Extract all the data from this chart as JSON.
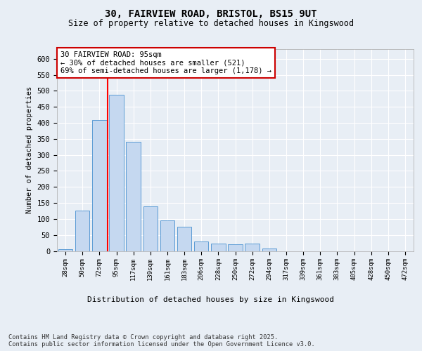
{
  "title1": "30, FAIRVIEW ROAD, BRISTOL, BS15 9UT",
  "title2": "Size of property relative to detached houses in Kingswood",
  "xlabel": "Distribution of detached houses by size in Kingswood",
  "ylabel": "Number of detached properties",
  "categories": [
    "28sqm",
    "50sqm",
    "72sqm",
    "95sqm",
    "117sqm",
    "139sqm",
    "161sqm",
    "183sqm",
    "206sqm",
    "228sqm",
    "250sqm",
    "272sqm",
    "294sqm",
    "317sqm",
    "339sqm",
    "361sqm",
    "383sqm",
    "405sqm",
    "428sqm",
    "450sqm",
    "472sqm"
  ],
  "bar_heights": [
    5,
    125,
    408,
    487,
    340,
    140,
    95,
    75,
    30,
    22,
    20,
    22,
    7,
    0,
    0,
    0,
    0,
    0,
    0,
    0,
    0
  ],
  "bar_color": "#c5d8f0",
  "bar_edge_color": "#5b9bd5",
  "red_line_index": 3,
  "annotation_text": "30 FAIRVIEW ROAD: 95sqm\n← 30% of detached houses are smaller (521)\n69% of semi-detached houses are larger (1,178) →",
  "annotation_box_color": "#ffffff",
  "annotation_box_edge": "#cc0000",
  "ylim": [
    0,
    630
  ],
  "yticks": [
    0,
    50,
    100,
    150,
    200,
    250,
    300,
    350,
    400,
    450,
    500,
    550,
    600
  ],
  "footer": "Contains HM Land Registry data © Crown copyright and database right 2025.\nContains public sector information licensed under the Open Government Licence v3.0.",
  "bg_color": "#e8eef5",
  "plot_bg_color": "#e8eef5",
  "grid_color": "#ffffff"
}
